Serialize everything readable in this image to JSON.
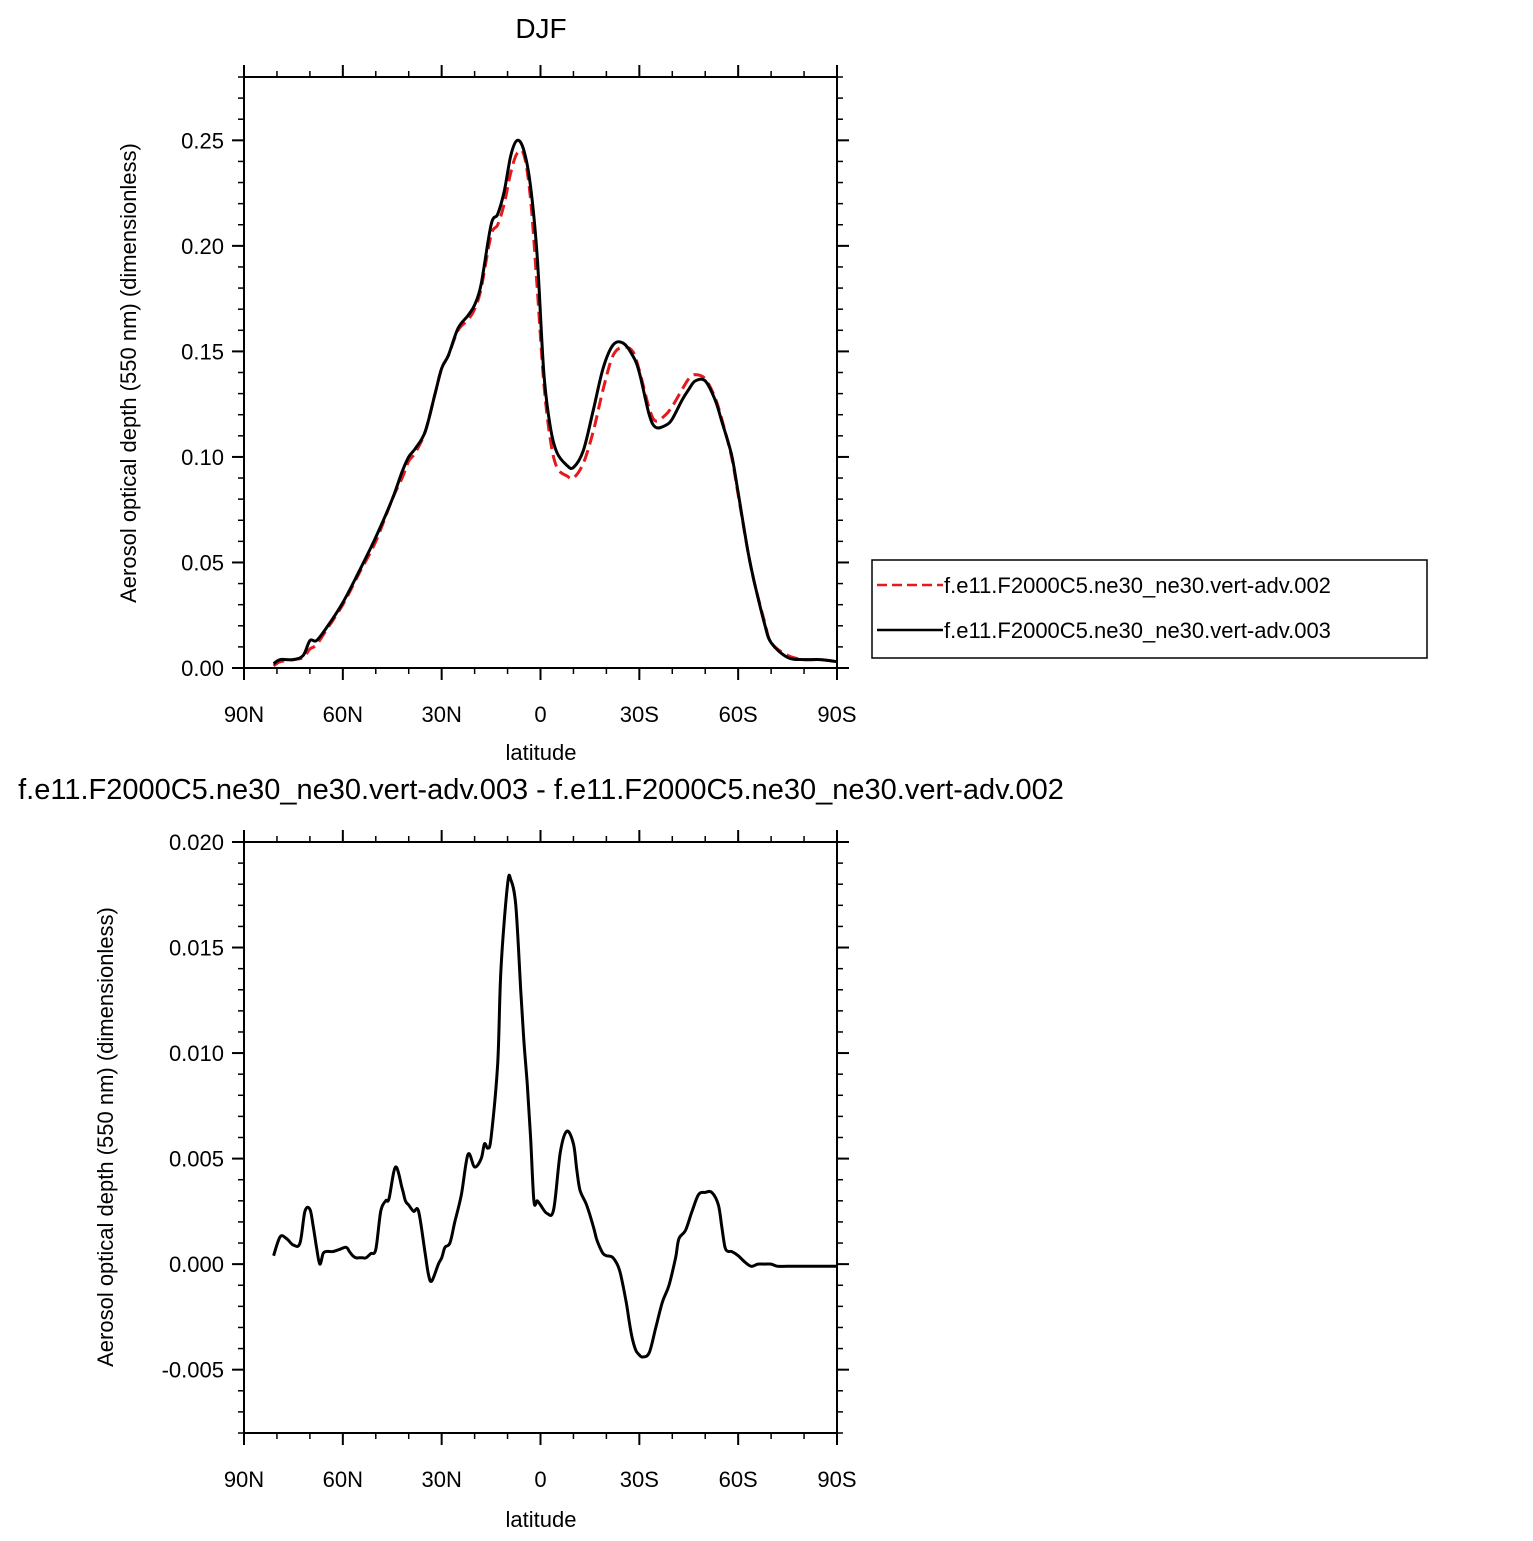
{
  "colors": {
    "run_002": "#e41a1c",
    "run_003": "#000000",
    "axis": "#000000",
    "background": "#ffffff"
  },
  "chart_data": [
    {
      "type": "line",
      "title": "DJF",
      "xlabel": "latitude",
      "ylabel": "Aerosol optical depth (550 nm) (dimensionless)",
      "xlim": [
        90,
        -90
      ],
      "ylim": [
        0,
        0.28
      ],
      "x_ticks": [
        90,
        60,
        30,
        0,
        -30,
        -60,
        -90
      ],
      "x_tick_labels": [
        "90N",
        "60N",
        "30N",
        "0",
        "30S",
        "60S",
        "90S"
      ],
      "y_ticks": [
        0,
        0.05,
        0.1,
        0.15,
        0.2,
        0.25
      ],
      "y_tick_labels": [
        "0.00",
        "0.05",
        "0.10",
        "0.15",
        "0.20",
        "0.25"
      ],
      "grid": false,
      "legend": "right",
      "series": [
        {
          "name": "f.e11.F2000C5.ne30_ne30.vert-adv.002",
          "color": "#e41a1c",
          "dash": "dashed",
          "x": [
            81,
            79,
            75,
            72,
            70,
            68,
            65,
            60,
            55,
            50,
            45,
            42,
            40,
            38,
            35,
            32,
            30,
            28,
            25,
            22,
            20,
            18,
            15,
            13,
            11,
            9,
            7,
            5,
            3,
            1,
            -1,
            -3,
            -5,
            -8,
            -10,
            -13,
            -16,
            -19,
            -22,
            -25,
            -28,
            -30,
            -33,
            -35,
            -38,
            -40,
            -43,
            -45,
            -47,
            -50,
            -53,
            -55,
            -58,
            -60,
            -63,
            -65,
            -68,
            -70,
            -75,
            -80,
            -85,
            -90
          ],
          "y": [
            0.001,
            0.003,
            0.004,
            0.005,
            0.009,
            0.011,
            0.018,
            0.03,
            0.045,
            0.06,
            0.08,
            0.09,
            0.098,
            0.102,
            0.112,
            0.13,
            0.142,
            0.148,
            0.16,
            0.165,
            0.17,
            0.18,
            0.205,
            0.21,
            0.22,
            0.235,
            0.244,
            0.243,
            0.222,
            0.18,
            0.135,
            0.108,
            0.095,
            0.091,
            0.09,
            0.097,
            0.112,
            0.132,
            0.148,
            0.152,
            0.15,
            0.141,
            0.123,
            0.117,
            0.12,
            0.124,
            0.132,
            0.137,
            0.139,
            0.137,
            0.128,
            0.118,
            0.1,
            0.082,
            0.055,
            0.04,
            0.022,
            0.012,
            0.006,
            0.004,
            0.004,
            0.003
          ]
        },
        {
          "name": "f.e11.F2000C5.ne30_ne30.vert-adv.003",
          "color": "#000000",
          "dash": "solid",
          "x": [
            81,
            79,
            75,
            72,
            70,
            68,
            65,
            60,
            55,
            50,
            45,
            42,
            40,
            38,
            35,
            32,
            30,
            28,
            25,
            22,
            20,
            18,
            15,
            13,
            11,
            9,
            7,
            5,
            3,
            1,
            -1,
            -3,
            -5,
            -8,
            -10,
            -13,
            -16,
            -19,
            -22,
            -25,
            -28,
            -30,
            -33,
            -35,
            -38,
            -40,
            -43,
            -45,
            -47,
            -50,
            -53,
            -55,
            -58,
            -60,
            -63,
            -65,
            -68,
            -70,
            -75,
            -80,
            -85,
            -90
          ],
          "y": [
            0.002,
            0.004,
            0.004,
            0.006,
            0.013,
            0.013,
            0.019,
            0.031,
            0.046,
            0.062,
            0.08,
            0.093,
            0.1,
            0.104,
            0.112,
            0.13,
            0.142,
            0.148,
            0.161,
            0.167,
            0.172,
            0.182,
            0.21,
            0.215,
            0.226,
            0.243,
            0.25,
            0.245,
            0.228,
            0.195,
            0.14,
            0.114,
            0.102,
            0.096,
            0.095,
            0.103,
            0.122,
            0.142,
            0.153,
            0.154,
            0.148,
            0.14,
            0.12,
            0.114,
            0.115,
            0.118,
            0.127,
            0.132,
            0.136,
            0.136,
            0.127,
            0.117,
            0.101,
            0.083,
            0.055,
            0.04,
            0.021,
            0.012,
            0.005,
            0.004,
            0.004,
            0.003
          ]
        }
      ]
    },
    {
      "type": "line",
      "title": "f.e11.F2000C5.ne30_ne30.vert-adv.003 - f.e11.F2000C5.ne30_ne30.vert-adv.002",
      "xlabel": "latitude",
      "ylabel": "Aerosol optical depth (550 nm) (dimensionless)",
      "xlim": [
        90,
        -90
      ],
      "ylim": [
        -0.008,
        0.02
      ],
      "x_ticks": [
        90,
        60,
        30,
        0,
        -30,
        -60,
        -90
      ],
      "x_tick_labels": [
        "90N",
        "60N",
        "30N",
        "0",
        "30S",
        "60S",
        "90S"
      ],
      "y_ticks": [
        -0.005,
        0,
        0.005,
        0.01,
        0.015,
        0.02
      ],
      "y_tick_labels": [
        "-0.005",
        "0.000",
        "0.005",
        "0.010",
        "0.015",
        "0.020"
      ],
      "grid": false,
      "series": [
        {
          "color": "#000000",
          "dash": "solid",
          "x": [
            81,
            79,
            77,
            75,
            73,
            71.5,
            70,
            69,
            68,
            67,
            66,
            65,
            63,
            61,
            59,
            58,
            57,
            56,
            55,
            54,
            53,
            51.5,
            50,
            48.5,
            47,
            46,
            44,
            42,
            41,
            40,
            38.5,
            37,
            35,
            34,
            33,
            31,
            30,
            29,
            27.5,
            26,
            24,
            22,
            20,
            18,
            17,
            16,
            15,
            13,
            12,
            10,
            9,
            7.5,
            6,
            5,
            4,
            3,
            2,
            1,
            0,
            -2,
            -4,
            -6,
            -8,
            -10,
            -11,
            -12,
            -14,
            -16,
            -17,
            -18,
            -19,
            -20,
            -22,
            -24,
            -26,
            -27,
            -28,
            -29,
            -30,
            -31,
            -33,
            -35,
            -37,
            -39,
            -41,
            -42,
            -44,
            -46,
            -48,
            -50,
            -52,
            -54,
            -55,
            -56,
            -57,
            -58,
            -60,
            -62,
            -64,
            -66,
            -68,
            -70,
            -72,
            -75,
            -80,
            -85,
            -90
          ],
          "y": [
            0.0004,
            0.0013,
            0.0012,
            0.0009,
            0.001,
            0.0025,
            0.0026,
            0.0018,
            0.0008,
            0.0,
            0.0005,
            0.0006,
            0.0006,
            0.0007,
            0.0008,
            0.0006,
            0.0004,
            0.0003,
            0.0003,
            0.0003,
            0.0003,
            0.0005,
            0.0007,
            0.0025,
            0.003,
            0.0031,
            0.0046,
            0.0036,
            0.003,
            0.0028,
            0.0025,
            0.0025,
            0.0005,
            -0.0005,
            -0.0008,
            0.0,
            0.0003,
            0.0008,
            0.001,
            0.002,
            0.0033,
            0.0052,
            0.0046,
            0.005,
            0.0057,
            0.0055,
            0.006,
            0.0095,
            0.014,
            0.018,
            0.0182,
            0.017,
            0.013,
            0.0105,
            0.0085,
            0.006,
            0.003,
            0.003,
            0.0028,
            0.0024,
            0.0026,
            0.0053,
            0.0063,
            0.0057,
            0.0045,
            0.0035,
            0.0028,
            0.0018,
            0.0012,
            0.0008,
            0.0005,
            0.0004,
            0.0003,
            -0.0003,
            -0.0018,
            -0.0028,
            -0.0036,
            -0.0041,
            -0.0043,
            -0.0044,
            -0.0042,
            -0.003,
            -0.0018,
            -0.001,
            0.0003,
            0.0012,
            0.0016,
            0.0025,
            0.0033,
            0.0034,
            0.0034,
            0.0028,
            0.0018,
            0.0008,
            0.0006,
            0.0006,
            0.0004,
            0.0001,
            -0.0001,
            0.0,
            0.0,
            0.0,
            -0.0001,
            -0.0001,
            -0.0001,
            -0.0001,
            -0.0001
          ]
        }
      ]
    }
  ]
}
